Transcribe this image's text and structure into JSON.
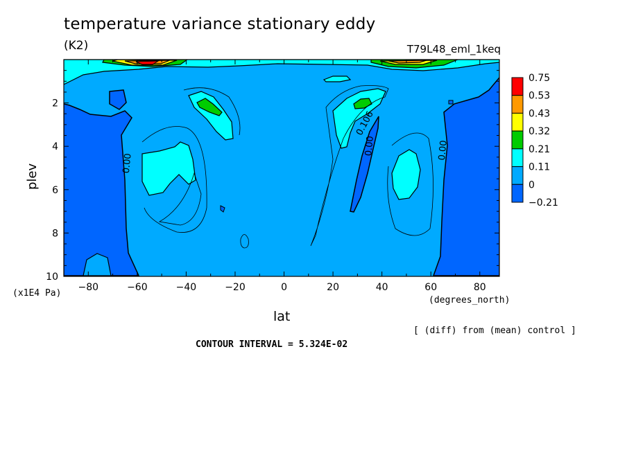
{
  "title": "temperature variance stationary eddy",
  "units": "(K2)",
  "run_label": "T79L48_eml_1keq",
  "diff_note": "[ (diff) from (mean) control ]",
  "contour_interval": "CONTOUR INTERVAL = 5.324E-02",
  "chart_data": {
    "type": "heatmap",
    "subtype": "filled latitude-pressure contour",
    "xlabel": "lat",
    "xunits": "(degrees_north)",
    "ylabel": "plev",
    "yunits": "(x1E4 Pa)",
    "xlim": [
      -90,
      88
    ],
    "ylim": [
      10,
      0
    ],
    "x_ticks": [
      -80,
      -60,
      -40,
      -20,
      0,
      20,
      40,
      60,
      80
    ],
    "y_ticks": [
      2,
      4,
      6,
      8,
      10
    ],
    "colorbar": {
      "levels": [
        "0.75",
        "0.53",
        "0.43",
        "0.32",
        "0.21",
        "0.11",
        "0",
        "-0.21"
      ],
      "colors": [
        "#ff0000",
        "#ff9900",
        "#ffff00",
        "#00cc00",
        "#00ffff",
        "#00aaff",
        "#0066ff"
      ]
    },
    "contour_labels": [
      {
        "text": "0.00",
        "lat": -63,
        "plev": 4.8
      },
      {
        "text": "0.106",
        "lat": 34,
        "plev": 3.0
      },
      {
        "text": "0.00",
        "lat": 36,
        "plev": 4.0
      },
      {
        "text": "0.00",
        "lat": 66,
        "plev": 4.2
      }
    ],
    "features": [
      {
        "level": "0.75",
        "lat": -58,
        "plev": 0.2
      },
      {
        "level": "0.32",
        "lat": -30,
        "plev": 2.2
      },
      {
        "level": "0.32",
        "lat": 33,
        "plev": 2.1
      },
      {
        "level": "0.21",
        "lat": 55,
        "plev": 0.1
      },
      {
        "level": "0.11",
        "lat": -52,
        "plev": 5.0
      },
      {
        "level": "0.11",
        "lat": 52,
        "plev": 5.1
      }
    ]
  }
}
